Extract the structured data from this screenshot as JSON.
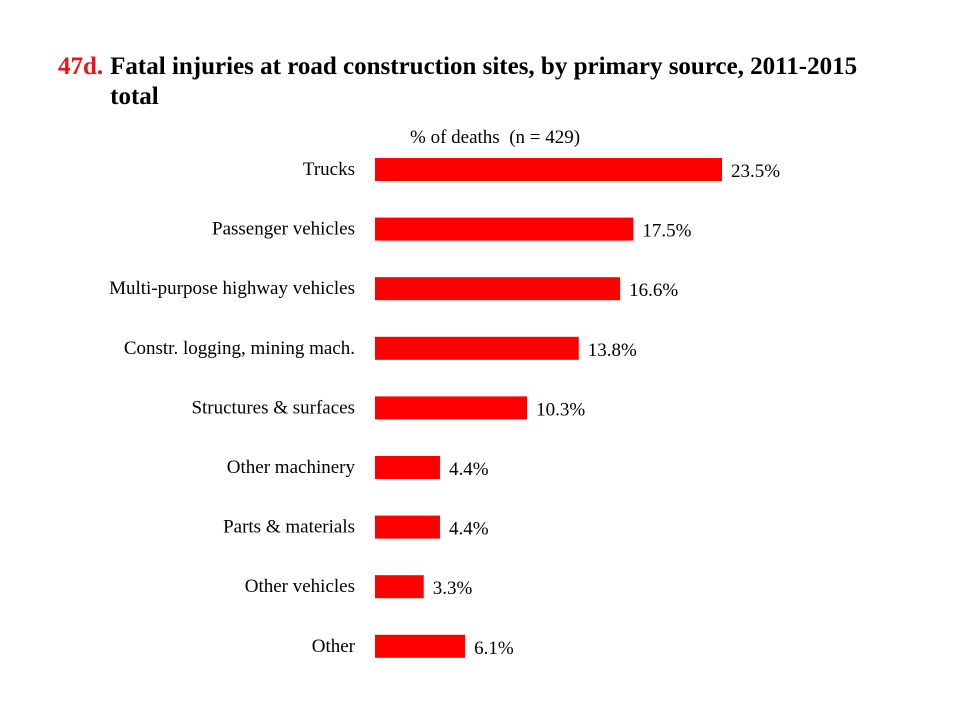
{
  "figure_number": "47d.",
  "title": "Fatal injuries at road construction sites, by primary source, 2011-2015 total",
  "axis_caption": "% of deaths  (n = 429)",
  "colors": {
    "bar": "#ff0000",
    "figure_number": "#e8141a",
    "text": "#000000"
  },
  "chart_data": {
    "type": "bar",
    "orientation": "horizontal",
    "title": "Fatal injuries at road construction sites, by primary source, 2011-2015 total",
    "xlabel": "% of deaths  (n = 429)",
    "ylabel": "",
    "categories": [
      "Trucks",
      "Passenger vehicles",
      "Multi-purpose highway vehicles",
      "Constr. logging, mining mach.",
      "Structures & surfaces",
      "Other machinery",
      "Parts & materials",
      "Other vehicles",
      "Other"
    ],
    "values": [
      23.5,
      17.5,
      16.6,
      13.8,
      10.3,
      4.4,
      4.4,
      3.3,
      6.1
    ],
    "value_labels": [
      "23.5%",
      "17.5%",
      "16.6%",
      "13.8%",
      "10.3%",
      "4.4%",
      "4.4%",
      "3.3%",
      "6.1%"
    ],
    "xlim": [
      0,
      23.5
    ],
    "grid": false,
    "legend": "none"
  }
}
